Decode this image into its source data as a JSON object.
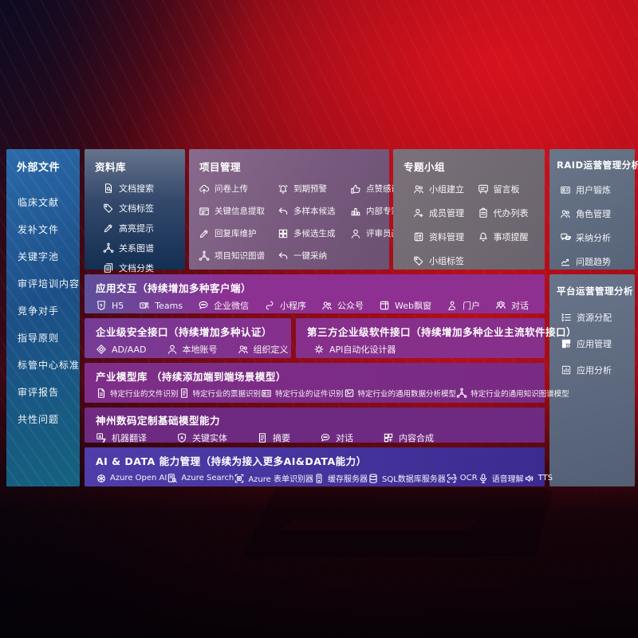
{
  "colors": {
    "background_red": "#b30e1b",
    "external_panel_blue": "#1c4f87",
    "repository_navy": "#132f53",
    "project_mauve": "#77597d",
    "topic_gray": "#69636d",
    "ops_slate": "#566378",
    "interaction_purple": "#8f3090",
    "ai_data_indigo": "#3b2b90"
  },
  "panels": {
    "external_files": {
      "title": "外部文件",
      "items": [
        {
          "label": "临床文献"
        },
        {
          "label": "发补文件"
        },
        {
          "label": "关键字池"
        },
        {
          "label": "审评培训内容"
        },
        {
          "label": "竞争对手"
        },
        {
          "label": "指导原则"
        },
        {
          "label": "标管中心标准"
        },
        {
          "label": "审评报告"
        },
        {
          "label": "共性问题"
        }
      ]
    },
    "repository": {
      "title": "资料库",
      "items": [
        {
          "label": "文档搜索",
          "icon": "doc-search"
        },
        {
          "label": "文档标签",
          "icon": "tag"
        },
        {
          "label": "高亮提示",
          "icon": "highlight-pen"
        },
        {
          "label": "关系图谱",
          "icon": "network"
        },
        {
          "label": "文档分类",
          "icon": "docs"
        }
      ]
    },
    "project_mgmt": {
      "title": "项目管理",
      "items": [
        {
          "label": "问卷上传",
          "icon": "cloud-upload"
        },
        {
          "label": "到期预警",
          "icon": "alarm"
        },
        {
          "label": "点赞感谢",
          "icon": "thumb-up"
        },
        {
          "label": "关键信息提取",
          "icon": "window-extract"
        },
        {
          "label": "多样本候选",
          "icon": "reply-arrow"
        },
        {
          "label": "内部专家排名",
          "icon": "podium"
        },
        {
          "label": "回复库维护",
          "icon": "highlight-pen"
        },
        {
          "label": "多候选生成",
          "icon": "grid"
        },
        {
          "label": "评审员画像",
          "icon": "person"
        },
        {
          "label": "项目知识图谱",
          "icon": "network"
        },
        {
          "label": "一键采纳",
          "icon": "reply-arrow"
        }
      ]
    },
    "topic_groups": {
      "title": "专题小组",
      "items": [
        {
          "label": "小组建立",
          "icon": "people"
        },
        {
          "label": "留言板",
          "icon": "message-board"
        },
        {
          "label": "成员管理",
          "icon": "person-add"
        },
        {
          "label": "代办列表",
          "icon": "clipboard"
        },
        {
          "label": "资料管理",
          "icon": "book"
        },
        {
          "label": "事项提醒",
          "icon": "bell"
        },
        {
          "label": "小组标签",
          "icon": "tag"
        }
      ]
    },
    "raid_ops": {
      "title": "RAID运营管理分析",
      "items": [
        {
          "label": "用户锻炼",
          "icon": "id-card"
        },
        {
          "label": "角色管理",
          "icon": "people"
        },
        {
          "label": "采纳分析",
          "icon": "chat-qa"
        },
        {
          "label": "问题趋势",
          "icon": "trend"
        }
      ]
    },
    "platform_ops": {
      "title": "平台运营管理分析",
      "items": [
        {
          "label": "资源分配",
          "icon": "allocation-list"
        },
        {
          "label": "应用管理",
          "icon": "app-grid"
        },
        {
          "label": "应用分析",
          "icon": "app-chart"
        }
      ]
    },
    "app_interaction": {
      "title": "应用交互（持续增加多种客户端）",
      "items": [
        {
          "label": "H5",
          "icon": "h5"
        },
        {
          "label": "Teams",
          "icon": "teams"
        },
        {
          "label": "企业微信",
          "icon": "chat-dots"
        },
        {
          "label": "小程序",
          "icon": "mini-program"
        },
        {
          "label": "公众号",
          "icon": "people"
        },
        {
          "label": "Web飘窗",
          "icon": "browser-window"
        },
        {
          "label": "门户",
          "icon": "portal-person"
        },
        {
          "label": "对话",
          "icon": "duo-chat"
        }
      ]
    },
    "security_api": {
      "title": "企业级安全接口（持续增加多种认证）",
      "items": [
        {
          "label": "AD/AAD",
          "icon": "ad-diamond"
        },
        {
          "label": "本地账号",
          "icon": "person"
        },
        {
          "label": "组织定义",
          "icon": "people"
        }
      ]
    },
    "third_party_api": {
      "title": "第三方企业级软件接口（持续增加多种企业主流软件接口）",
      "items": [
        {
          "label": "API自动化设计器",
          "icon": "gear"
        }
      ]
    },
    "industry_models": {
      "title": "产业模型库 （持续添加端到端场景模型）",
      "items": [
        {
          "label": "特定行业的文件识别",
          "icon": "file"
        },
        {
          "label": "特定行业的票据识别",
          "icon": "receipt"
        },
        {
          "label": "特定行业的证件识别",
          "icon": "id-card"
        },
        {
          "label": "特定行业的通用数据分析模型",
          "icon": "image-chart"
        },
        {
          "label": "特定行业的通用知识图谱模型",
          "icon": "network"
        }
      ]
    },
    "custom_models": {
      "title": "神州数码定制基础模型能力",
      "items": [
        {
          "label": "机器翻译",
          "icon": "translate"
        },
        {
          "label": "关键实体",
          "icon": "shield-a"
        },
        {
          "label": "摘要",
          "icon": "doc"
        },
        {
          "label": "对话",
          "icon": "chat-bubble"
        },
        {
          "label": "内容合成",
          "icon": "compose-grid"
        }
      ]
    },
    "ai_data": {
      "title": "AI & DATA 能力管理（持续为接入更多AI&DATA能力）",
      "items": [
        {
          "label": "Azure Open AI",
          "icon": "openai"
        },
        {
          "label": "Azure Search",
          "icon": "search-doc"
        },
        {
          "label": "Azure 表单识别器",
          "icon": "form-scan"
        },
        {
          "label": "缓存服务器",
          "icon": "server"
        },
        {
          "label": "SQL数据库服务器",
          "icon": "database"
        },
        {
          "label": "OCR",
          "icon": "ocr"
        },
        {
          "label": "语音理解",
          "icon": "microphone"
        },
        {
          "label": "TTS",
          "icon": "speaker"
        }
      ]
    }
  }
}
